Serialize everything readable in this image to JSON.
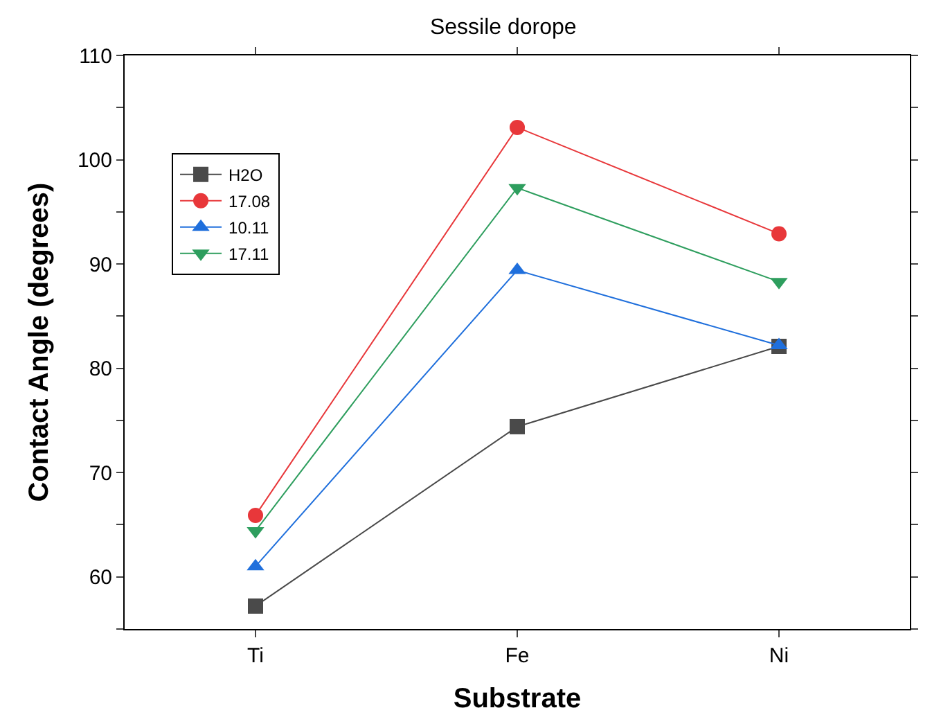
{
  "chart_data": {
    "type": "line",
    "title": "Sessile dorope",
    "xlabel": "Substrate",
    "ylabel": "Contact Angle (degrees)",
    "categories": [
      "Ti",
      "Fe",
      "Ni"
    ],
    "series": [
      {
        "name": "H2O",
        "color": "#4a4a4a",
        "marker": "square",
        "values": [
          57.2,
          74.4,
          82.1
        ]
      },
      {
        "name": "17.08",
        "color": "#e8373a",
        "marker": "circle",
        "values": [
          65.9,
          103.1,
          92.9
        ]
      },
      {
        "name": "10.11",
        "color": "#1f6fdc",
        "marker": "triangle",
        "values": [
          61.0,
          89.4,
          82.2
        ]
      },
      {
        "name": "17.11",
        "color": "#2e9e5e",
        "marker": "triangle-down",
        "values": [
          64.4,
          97.3,
          88.3
        ]
      }
    ],
    "ylim": [
      55,
      110
    ],
    "yticks": [
      {
        "value": 55,
        "label": null
      },
      60,
      {
        "value": 65,
        "label": null
      },
      70,
      {
        "value": 75,
        "label": null
      },
      80,
      {
        "value": 85,
        "label": null
      },
      90,
      {
        "value": 95,
        "label": null
      },
      100,
      {
        "value": 105,
        "label": null
      },
      110
    ],
    "legend": "top left",
    "line_style": "solid"
  }
}
